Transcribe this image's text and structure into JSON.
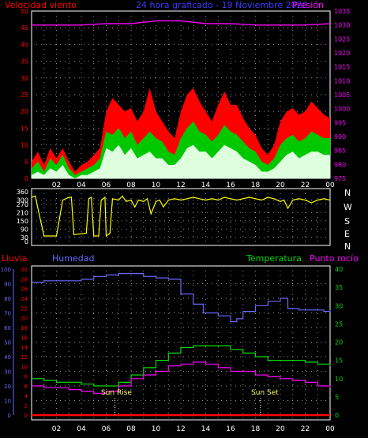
{
  "colors": {
    "bg": "#000000",
    "grid": "#8f8f8f",
    "wind_gust": "#ff0000",
    "wind_avg": "#00c800",
    "wind_light": "#ddffdd",
    "pressure": "#ff00ff",
    "direction": "#ffff00",
    "humidity": "#6a6aff",
    "temperature": "#00dd00",
    "dewpoint": "#ff00ff",
    "rain": "#ff0000",
    "sun": "#ffff66",
    "axis_white": "#ffffff"
  },
  "header": {
    "left": "Velocidad viento",
    "center": "24 hora graficado - 19 Noviembre 2020",
    "right": "Presión"
  },
  "lower_header": {
    "rain": "Lluvia",
    "humidity": "Humedad",
    "temperature": "Temperatura",
    "dewpoint": "Punto rocío"
  },
  "x_ticks": [
    "02",
    "04",
    "06",
    "08",
    "10",
    "12",
    "14",
    "16",
    "18",
    "20",
    "22",
    "00"
  ],
  "compass": [
    "N",
    "W",
    "S",
    "E",
    "N"
  ],
  "annotations": {
    "sunrise": "Sun Rise",
    "sunset": "Sun Set",
    "sunrise_hour": 6.7,
    "sunset_hour": 18.4
  },
  "chart_data": [
    {
      "type": "area",
      "id": "wind",
      "x_unit": "hour",
      "ylim_left": [
        0,
        50
      ],
      "ylim_right": [
        975,
        1035
      ],
      "y_ticks_left": [
        0,
        5,
        10,
        15,
        20,
        25,
        30,
        35,
        40,
        45,
        50
      ],
      "y_ticks_right": [
        975,
        980,
        985,
        990,
        995,
        1000,
        1005,
        1010,
        1015,
        1020,
        1025,
        1030,
        1035
      ],
      "wind_points": [
        [
          0,
          3,
          1,
          5
        ],
        [
          0.5,
          5,
          2,
          8
        ],
        [
          1,
          2,
          1,
          4
        ],
        [
          1.5,
          6,
          3,
          9
        ],
        [
          2,
          4,
          2,
          6
        ],
        [
          2.5,
          7,
          4,
          9
        ],
        [
          3,
          3,
          1,
          5
        ],
        [
          3.5,
          1,
          0,
          2
        ],
        [
          4,
          2,
          1,
          4
        ],
        [
          4.5,
          3,
          1,
          5
        ],
        [
          5,
          4,
          2,
          7
        ],
        [
          5.5,
          6,
          3,
          9
        ],
        [
          6,
          14,
          9,
          20
        ],
        [
          6.5,
          13,
          8,
          24
        ],
        [
          7,
          15,
          10,
          22
        ],
        [
          7.5,
          12,
          7,
          20
        ],
        [
          8,
          14,
          9,
          21
        ],
        [
          8.5,
          10,
          6,
          17
        ],
        [
          9,
          12,
          7,
          20
        ],
        [
          9.5,
          14,
          8,
          27
        ],
        [
          10,
          12,
          6,
          20
        ],
        [
          10.5,
          11,
          6,
          17
        ],
        [
          11,
          8,
          4,
          14
        ],
        [
          11.5,
          7,
          4,
          12
        ],
        [
          12,
          12,
          6,
          20
        ],
        [
          12.5,
          15,
          9,
          25
        ],
        [
          13,
          17,
          10,
          27
        ],
        [
          13.5,
          14,
          8,
          23
        ],
        [
          14,
          13,
          8,
          20
        ],
        [
          14.5,
          11,
          6,
          17
        ],
        [
          15,
          13,
          8,
          22
        ],
        [
          15.5,
          16,
          10,
          26
        ],
        [
          16,
          14,
          9,
          22
        ],
        [
          16.5,
          13,
          8,
          22
        ],
        [
          17,
          11,
          6,
          18
        ],
        [
          17.5,
          9,
          5,
          15
        ],
        [
          18,
          8,
          4,
          13
        ],
        [
          18.5,
          5,
          2,
          9
        ],
        [
          19,
          4,
          2,
          7
        ],
        [
          19.5,
          6,
          3,
          10
        ],
        [
          20,
          10,
          5,
          17
        ],
        [
          20.5,
          12,
          7,
          20
        ],
        [
          21,
          13,
          8,
          21
        ],
        [
          21.5,
          11,
          6,
          19
        ],
        [
          22,
          12,
          7,
          20
        ],
        [
          22.5,
          14,
          8,
          23
        ],
        [
          23,
          13,
          8,
          21
        ],
        [
          23.5,
          12,
          7,
          19
        ],
        [
          24,
          12,
          7,
          18
        ]
      ],
      "pressure": [
        [
          0,
          1030
        ],
        [
          2,
          1030
        ],
        [
          4,
          1030
        ],
        [
          6,
          1030.5
        ],
        [
          8,
          1030.5
        ],
        [
          10,
          1031.5
        ],
        [
          12,
          1031.5
        ],
        [
          14,
          1030.5
        ],
        [
          16,
          1030.5
        ],
        [
          18,
          1030
        ],
        [
          20,
          1030
        ],
        [
          22,
          1030
        ],
        [
          24,
          1030.5
        ]
      ]
    },
    {
      "type": "line",
      "id": "direction",
      "ylim": [
        0,
        360
      ],
      "y_ticks": [
        0,
        30,
        90,
        150,
        210,
        270,
        300,
        360
      ],
      "points": [
        [
          0,
          320
        ],
        [
          0.3,
          330
        ],
        [
          0.6,
          200
        ],
        [
          1,
          40
        ],
        [
          2,
          40
        ],
        [
          2.5,
          300
        ],
        [
          3,
          320
        ],
        [
          3.2,
          320
        ],
        [
          3.4,
          50
        ],
        [
          4.4,
          60
        ],
        [
          4.6,
          310
        ],
        [
          4.8,
          320
        ],
        [
          5,
          40
        ],
        [
          5.4,
          40
        ],
        [
          5.6,
          300
        ],
        [
          5.9,
          320
        ],
        [
          6,
          40
        ],
        [
          6.3,
          60
        ],
        [
          6.5,
          310
        ],
        [
          7,
          300
        ],
        [
          7.3,
          330
        ],
        [
          7.6,
          290
        ],
        [
          8,
          300
        ],
        [
          8.3,
          250
        ],
        [
          8.6,
          300
        ],
        [
          9,
          290
        ],
        [
          9.3,
          310
        ],
        [
          9.6,
          200
        ],
        [
          10,
          290
        ],
        [
          10.3,
          300
        ],
        [
          10.6,
          250
        ],
        [
          11,
          300
        ],
        [
          11.5,
          310
        ],
        [
          12,
          300
        ],
        [
          12.5,
          310
        ],
        [
          13,
          320
        ],
        [
          13.5,
          310
        ],
        [
          14,
          300
        ],
        [
          14.5,
          310
        ],
        [
          15,
          300
        ],
        [
          15.5,
          320
        ],
        [
          16,
          310
        ],
        [
          16.5,
          300
        ],
        [
          17,
          310
        ],
        [
          17.5,
          320
        ],
        [
          18,
          310
        ],
        [
          18.5,
          300
        ],
        [
          19,
          320
        ],
        [
          19.5,
          310
        ],
        [
          20,
          290
        ],
        [
          20.3,
          300
        ],
        [
          20.6,
          240
        ],
        [
          21,
          300
        ],
        [
          21.5,
          310
        ],
        [
          22,
          300
        ],
        [
          22.5,
          280
        ],
        [
          23,
          300
        ],
        [
          23.5,
          310
        ],
        [
          24,
          300
        ]
      ]
    },
    {
      "type": "line",
      "id": "climate",
      "ylim_left": [
        0,
        100
      ],
      "ylim_right": [
        0,
        40
      ],
      "y_ticks_left": [
        0,
        10,
        20,
        30,
        40,
        50,
        60,
        70,
        80,
        90,
        100
      ],
      "y_ticks_rain": [
        0,
        2,
        4,
        6,
        8,
        10,
        12,
        14,
        16,
        18,
        20,
        22,
        24,
        26,
        28,
        30
      ],
      "y_ticks_right": [
        0,
        5,
        10,
        15,
        20,
        25,
        30,
        35,
        40
      ],
      "series": [
        {
          "key": "humidity",
          "name": "Humedad",
          "axis": "left",
          "points": [
            [
              0,
              91
            ],
            [
              1,
              92
            ],
            [
              2,
              92
            ],
            [
              3,
              92
            ],
            [
              4,
              93
            ],
            [
              5,
              95
            ],
            [
              6,
              96
            ],
            [
              7,
              97
            ],
            [
              8,
              97
            ],
            [
              9,
              95
            ],
            [
              10,
              94
            ],
            [
              11,
              93
            ],
            [
              12,
              83
            ],
            [
              13,
              76
            ],
            [
              13.8,
              70
            ],
            [
              14.5,
              70
            ],
            [
              15,
              68
            ],
            [
              16,
              64
            ],
            [
              16.5,
              66
            ],
            [
              17,
              71
            ],
            [
              18,
              75
            ],
            [
              19,
              78
            ],
            [
              20,
              80
            ],
            [
              20.6,
              73
            ],
            [
              21.5,
              72
            ],
            [
              22.5,
              72
            ],
            [
              23.5,
              71
            ],
            [
              24,
              72
            ]
          ]
        },
        {
          "key": "temperature",
          "name": "Temperatura",
          "axis": "right",
          "points": [
            [
              0,
              10
            ],
            [
              1,
              9.5
            ],
            [
              2,
              9
            ],
            [
              3,
              9
            ],
            [
              4,
              8.5
            ],
            [
              5,
              8
            ],
            [
              6,
              8
            ],
            [
              7,
              9
            ],
            [
              8,
              11
            ],
            [
              9,
              13
            ],
            [
              10,
              15
            ],
            [
              11,
              17
            ],
            [
              12,
              18.5
            ],
            [
              13,
              19
            ],
            [
              14,
              19
            ],
            [
              15,
              19
            ],
            [
              16,
              18
            ],
            [
              17,
              17
            ],
            [
              18,
              16
            ],
            [
              19,
              15
            ],
            [
              20,
              15
            ],
            [
              21,
              15
            ],
            [
              22,
              14.5
            ],
            [
              23,
              14
            ],
            [
              24,
              13.5
            ]
          ]
        },
        {
          "key": "dewpoint",
          "name": "Punto rocío",
          "axis": "right",
          "points": [
            [
              0,
              8
            ],
            [
              1,
              7.5
            ],
            [
              2,
              7.5
            ],
            [
              3,
              7
            ],
            [
              4,
              6.5
            ],
            [
              5,
              6
            ],
            [
              6,
              6.5
            ],
            [
              7,
              8
            ],
            [
              8,
              10
            ],
            [
              9,
              11
            ],
            [
              10,
              12
            ],
            [
              11,
              13.5
            ],
            [
              12,
              14
            ],
            [
              13,
              14.5
            ],
            [
              14,
              14
            ],
            [
              15,
              13
            ],
            [
              16,
              12
            ],
            [
              17,
              12
            ],
            [
              18,
              11
            ],
            [
              19,
              10.5
            ],
            [
              20,
              10
            ],
            [
              21,
              9.5
            ],
            [
              22,
              9
            ],
            [
              23,
              8
            ],
            [
              24,
              7.5
            ]
          ]
        },
        {
          "key": "rain",
          "name": "Lluvia",
          "axis": "rain",
          "points": [
            [
              0,
              0
            ],
            [
              24,
              0
            ]
          ]
        }
      ]
    }
  ]
}
